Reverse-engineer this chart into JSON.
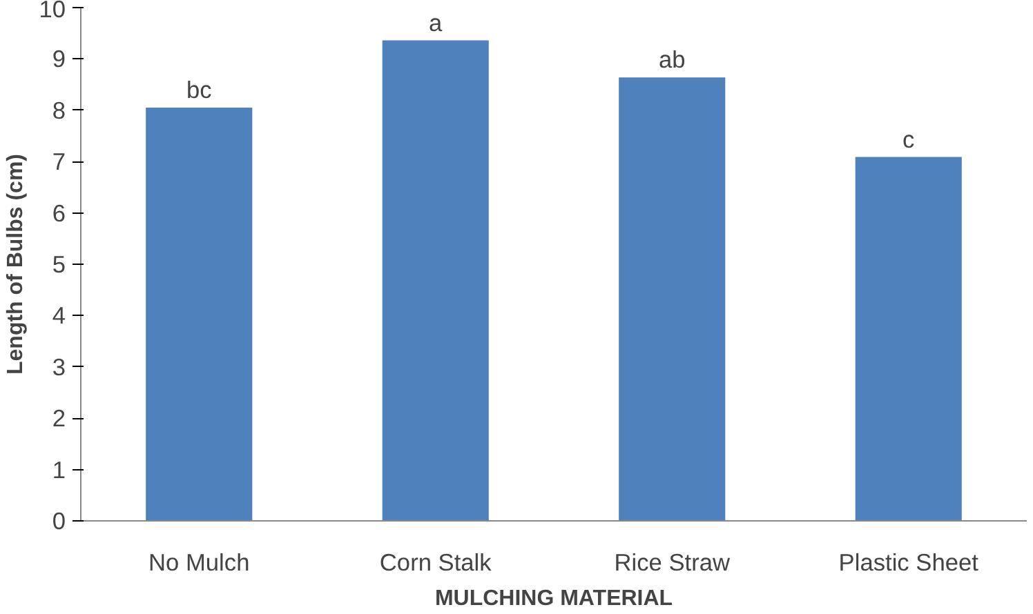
{
  "chart_data": {
    "type": "bar",
    "xlabel": "MULCHING MATERIAL",
    "ylabel": "Length of Bulbs (cm)",
    "categories": [
      "No Mulch",
      "Corn Stalk",
      "Rice Straw",
      "Plastic Sheet"
    ],
    "values": [
      8.05,
      9.36,
      8.64,
      7.09
    ],
    "color": "#4f81bd",
    "ylim": [
      0,
      10
    ],
    "yticks": [
      0,
      1,
      2,
      3,
      4,
      5,
      6,
      7,
      8,
      9,
      10
    ],
    "grid": false,
    "annotations": [
      {
        "text": "bc",
        "x": "No Mulch",
        "y": 8.05
      },
      {
        "text": "a",
        "x": "Corn Stalk",
        "y": 9.36
      },
      {
        "text": "ab",
        "x": "Rice Straw",
        "y": 8.64
      },
      {
        "text": "c",
        "x": "Plastic Sheet",
        "y": 7.09
      }
    ]
  }
}
